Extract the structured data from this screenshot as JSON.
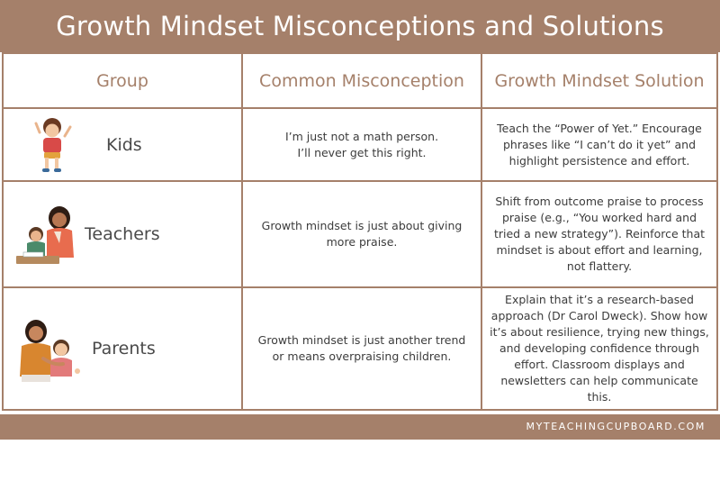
{
  "title": "Growth Mindset Misconceptions and Solutions",
  "headers": {
    "group": "Group",
    "misconception": "Common Misconception",
    "solution": "Growth Mindset Solution"
  },
  "rows": [
    {
      "group": "Kids",
      "icon": "kid-waving-icon",
      "misconception": "I’m just not a math person.\nI’ll never get this right.",
      "solution": "Teach the “Power of Yet.” Encourage phrases like “I can’t do it yet” and highlight persistence and effort."
    },
    {
      "group": "Teachers",
      "icon": "teacher-with-student-icon",
      "misconception": "Growth mindset is just about giving more praise.",
      "solution": "Shift from outcome praise to process praise (e.g., “You worked hard and tried a new strategy”). Reinforce that mindset is about effort and learning, not flattery."
    },
    {
      "group": "Parents",
      "icon": "parent-hugging-child-icon",
      "misconception": "Growth mindset is just another trend or means overpraising children.",
      "solution": "Explain that it’s a research-based approach (Dr Carol Dweck). Show how it’s about resilience, trying new things, and developing confidence through effort. Classroom displays and newsletters can help communicate this."
    }
  ],
  "footer": "MYTEACHINGCUPBOARD.COM",
  "colors": {
    "accent": "#a5806a",
    "text": "#3c3c3c"
  }
}
